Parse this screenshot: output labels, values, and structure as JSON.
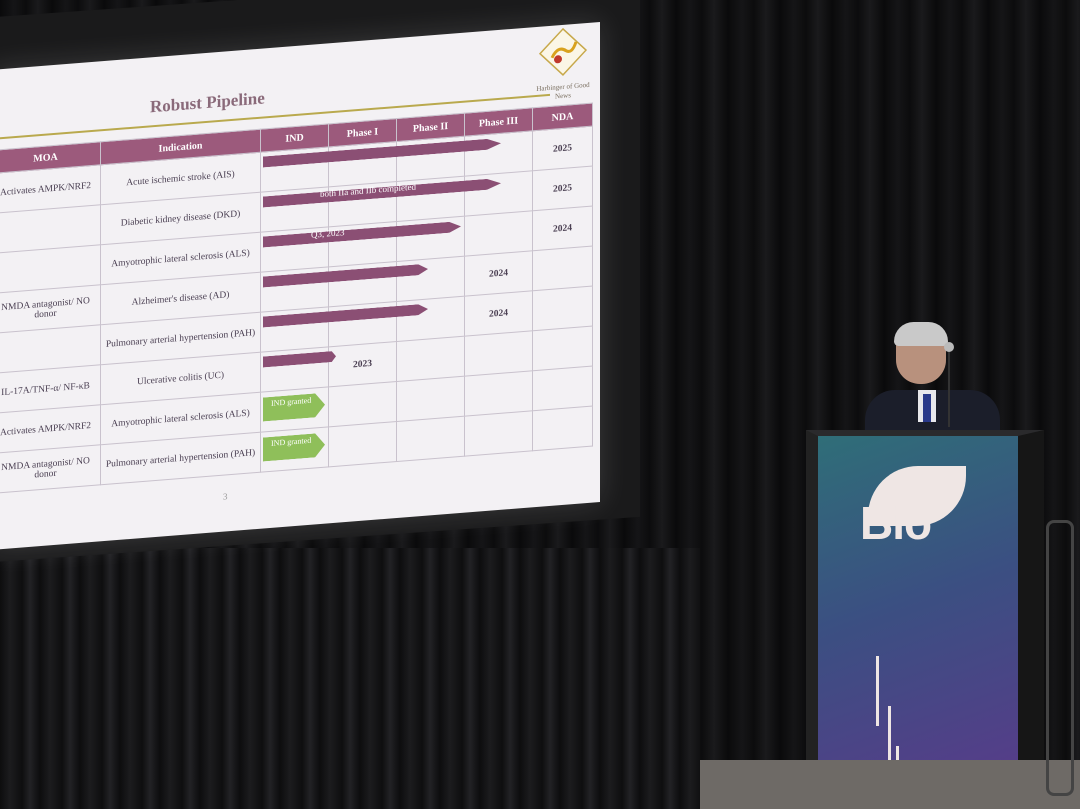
{
  "slide": {
    "title": "Robust Pipeline",
    "logo_caption": "Harbinger of Good News",
    "page_number": "3",
    "columns": [
      "MOA",
      "Indication",
      "IND",
      "Phase I",
      "Phase II",
      "Phase III",
      "NDA"
    ],
    "rows": [
      {
        "moa": "Activates AMPK/NRF2",
        "indication": "Acute ischemic stroke (AIS)",
        "progress": 0.72,
        "bar_label": "",
        "nda": "2025"
      },
      {
        "moa": "",
        "indication": "Diabetic kidney disease (DKD)",
        "progress": 0.72,
        "bar_label": "both IIa and IIb completed",
        "nda": "2025"
      },
      {
        "moa": "",
        "indication": "Amyotrophic lateral sclerosis (ALS)",
        "progress": 0.6,
        "bar_label": "Q3, 2023",
        "nda": "2024"
      },
      {
        "moa": "NMDA antagonist/ NO donor",
        "indication": "Alzheimer's disease (AD)",
        "progress": 0.5,
        "bar_label": "",
        "phase3": "2024"
      },
      {
        "moa": "",
        "indication": "Pulmonary arterial hypertension (PAH)",
        "progress": 0.5,
        "bar_label": "",
        "phase3": "2024"
      },
      {
        "moa": "IL-17A/TNF-α/ NF-κB",
        "indication": "Ulcerative colitis (UC)",
        "progress": 0.22,
        "bar_label": "",
        "phase1": "2023"
      },
      {
        "moa": "Activates AMPK/NRF2",
        "indication": "Amyotrophic lateral sclerosis (ALS)",
        "badge": "IND granted"
      },
      {
        "moa": "NMDA antagonist/ NO donor",
        "indication": "Pulmonary arterial hypertension (PAH)",
        "badge": "IND granted"
      }
    ]
  },
  "podium": {
    "brand": "Bio"
  },
  "colors": {
    "header": "#9c5a7c",
    "bar": "#8b4f74",
    "badge": "#8fbf5a",
    "podium": "#3b4f82"
  }
}
